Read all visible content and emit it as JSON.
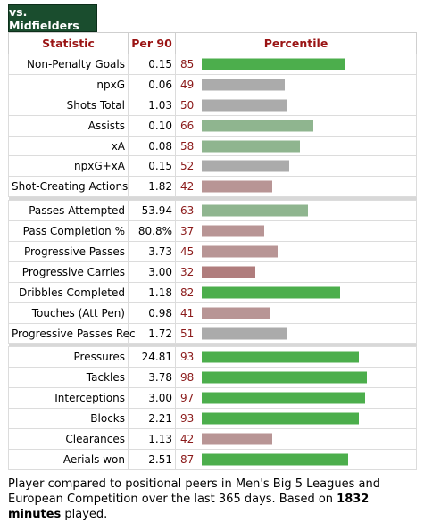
{
  "tab_label": "vs. Midfielders",
  "headers": {
    "statistic": "Statistic",
    "per90": "Per 90",
    "percentile": "Percentile"
  },
  "colors": {
    "high": "#4cae4c",
    "mid_high": "#8fb58f",
    "mid": "#ababab",
    "low": "#b89595",
    "lower": "#b07d7d"
  },
  "groups": [
    [
      {
        "stat": "Non-Penalty Goals",
        "per90": "0.15",
        "pct": 85,
        "tone": "high"
      },
      {
        "stat": "npxG",
        "per90": "0.06",
        "pct": 49,
        "tone": "mid"
      },
      {
        "stat": "Shots Total",
        "per90": "1.03",
        "pct": 50,
        "tone": "mid"
      },
      {
        "stat": "Assists",
        "per90": "0.10",
        "pct": 66,
        "tone": "mid_high"
      },
      {
        "stat": "xA",
        "per90": "0.08",
        "pct": 58,
        "tone": "mid_high"
      },
      {
        "stat": "npxG+xA",
        "per90": "0.15",
        "pct": 52,
        "tone": "mid"
      },
      {
        "stat": "Shot-Creating Actions",
        "per90": "1.82",
        "pct": 42,
        "tone": "low"
      }
    ],
    [
      {
        "stat": "Passes Attempted",
        "per90": "53.94",
        "pct": 63,
        "tone": "mid_high"
      },
      {
        "stat": "Pass Completion %",
        "per90": "80.8%",
        "pct": 37,
        "tone": "low"
      },
      {
        "stat": "Progressive Passes",
        "per90": "3.73",
        "pct": 45,
        "tone": "low"
      },
      {
        "stat": "Progressive Carries",
        "per90": "3.00",
        "pct": 32,
        "tone": "lower"
      },
      {
        "stat": "Dribbles Completed",
        "per90": "1.18",
        "pct": 82,
        "tone": "high"
      },
      {
        "stat": "Touches (Att Pen)",
        "per90": "0.98",
        "pct": 41,
        "tone": "low"
      },
      {
        "stat": "Progressive Passes Rec",
        "per90": "1.72",
        "pct": 51,
        "tone": "mid"
      }
    ],
    [
      {
        "stat": "Pressures",
        "per90": "24.81",
        "pct": 93,
        "tone": "high"
      },
      {
        "stat": "Tackles",
        "per90": "3.78",
        "pct": 98,
        "tone": "high"
      },
      {
        "stat": "Interceptions",
        "per90": "3.00",
        "pct": 97,
        "tone": "high"
      },
      {
        "stat": "Blocks",
        "per90": "2.21",
        "pct": 93,
        "tone": "high"
      },
      {
        "stat": "Clearances",
        "per90": "1.13",
        "pct": 42,
        "tone": "low"
      },
      {
        "stat": "Aerials won",
        "per90": "2.51",
        "pct": 87,
        "tone": "high"
      }
    ]
  ],
  "footer": {
    "text1": "Player compared to positional peers in Men's Big 5 Leagues and European Competition over the last 365 days. Based on ",
    "minutes": "1832 minutes",
    "text2": " played."
  }
}
